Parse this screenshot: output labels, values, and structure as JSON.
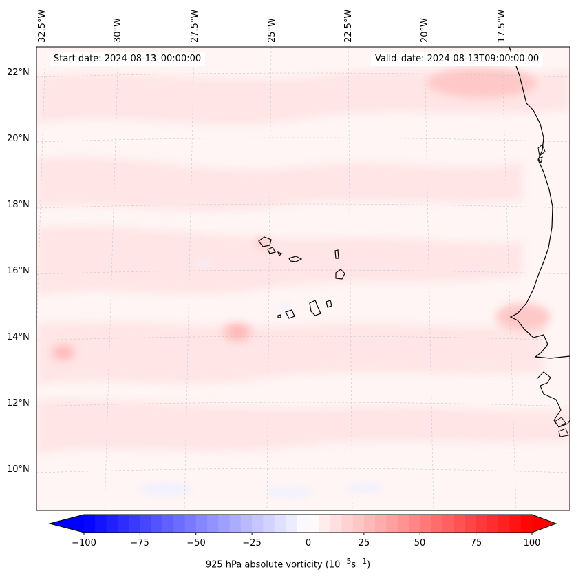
{
  "header": {
    "start_date": "Start date: 2024-08-13_00:00:00",
    "valid_date": "Valid_date: 2024-08-13T09:00:00.00"
  },
  "map": {
    "longitude_labels": [
      "32.5°W",
      "30°W",
      "27.5°W",
      "25°W",
      "22.5°W",
      "20°W",
      "17.5°W"
    ],
    "latitude_labels": [
      "22°N",
      "20°N",
      "18°N",
      "16°N",
      "14°N",
      "12°N",
      "10°N"
    ],
    "field": "925 hPa absolute vorticity"
  },
  "colorbar": {
    "ticks": [
      "−100",
      "−75",
      "−50",
      "−25",
      "0",
      "25",
      "50",
      "75",
      "100"
    ],
    "label_prefix": "925 hPa absolute vorticity (10",
    "label_exp1": "−5",
    "label_mid": "s",
    "label_exp2": "−1",
    "label_suffix": ")",
    "min": -100,
    "max": 100,
    "low_color": "#0000ff",
    "high_color": "#ff0000"
  }
}
